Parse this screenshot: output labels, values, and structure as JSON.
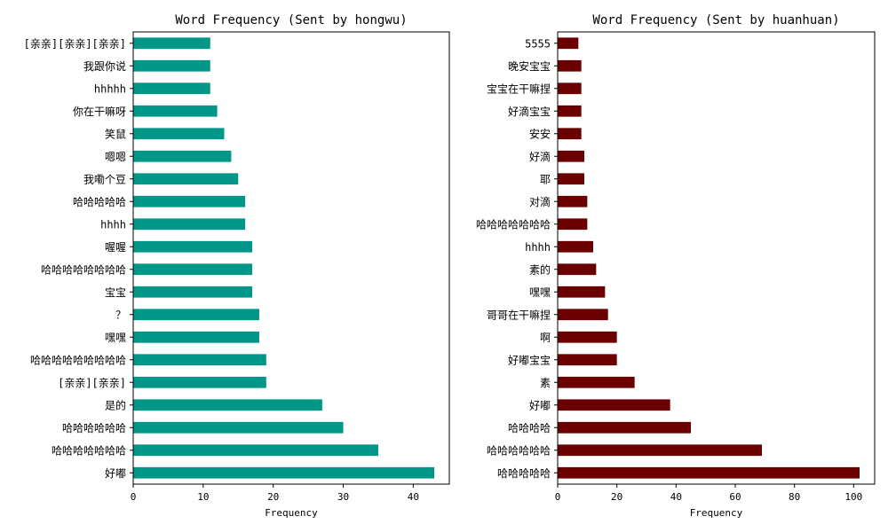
{
  "chart_data": [
    {
      "type": "bar",
      "orientation": "horizontal",
      "title": "Word Frequency (Sent by hongwu)",
      "xlabel": "Frequency",
      "ylabel": "",
      "xlim": [
        0,
        45.15
      ],
      "xticks": [
        0,
        10,
        20,
        30,
        40
      ],
      "grid": false,
      "color": "#009688",
      "categories": [
        "好嘟",
        "哈哈哈哈哈哈哈",
        "哈哈哈哈哈哈",
        "是的",
        "[亲亲][亲亲]",
        "哈哈哈哈哈哈哈哈哈",
        "嘿嘿",
        "？",
        "宝宝",
        "哈哈哈哈哈哈哈哈",
        "喔喔",
        "hhhh",
        "哈哈哈哈哈",
        "我嘞个豆",
        "嗯嗯",
        "笑鼠",
        "你在干嘛呀",
        "hhhhh",
        "我跟你说",
        "[亲亲][亲亲][亲亲]"
      ],
      "values": [
        43,
        35,
        30,
        27,
        19,
        19,
        18,
        18,
        17,
        17,
        17,
        16,
        16,
        15,
        14,
        13,
        12,
        11,
        11,
        11
      ]
    },
    {
      "type": "bar",
      "orientation": "horizontal",
      "title": "Word Frequency (Sent by huanhuan)",
      "xlabel": "Frequency",
      "ylabel": "",
      "xlim": [
        0,
        107.1
      ],
      "xticks": [
        0,
        20,
        40,
        60,
        80,
        100
      ],
      "grid": false,
      "color": "#6b0000",
      "categories": [
        "哈哈哈哈哈",
        "哈哈哈哈哈哈",
        "哈哈哈哈",
        "好嘟",
        "素",
        "好嘟宝宝",
        "啊",
        "哥哥在干嘛捏",
        "嘿嘿",
        "素的",
        "hhhh",
        "哈哈哈哈哈哈哈",
        "对滴",
        "耶",
        "好滴",
        "安安",
        "好滴宝宝",
        "宝宝在干嘛捏",
        "晚安宝宝",
        "5555"
      ],
      "values": [
        102,
        69,
        45,
        38,
        26,
        20,
        20,
        17,
        16,
        13,
        12,
        10,
        10,
        9,
        9,
        8,
        8,
        8,
        8,
        7
      ]
    }
  ]
}
